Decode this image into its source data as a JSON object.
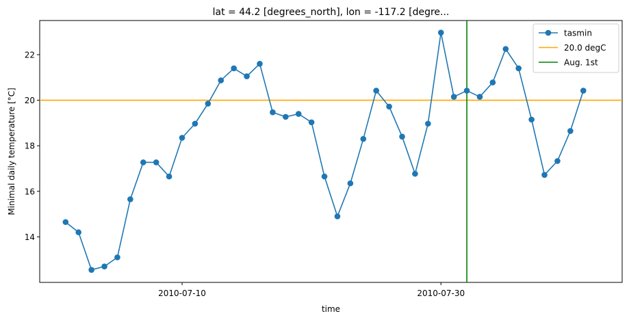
{
  "chart_data": {
    "type": "line",
    "title": "lat = 44.2 [degrees_north], lon = -117.2 [degre...",
    "xlabel": "time",
    "ylabel": "Minimal daily temperature [°C]",
    "x_start": "2010-07-01",
    "xticks": [
      {
        "day": 9,
        "label": "2010-07-10"
      },
      {
        "day": 29,
        "label": "2010-07-30"
      }
    ],
    "yticks": [
      14,
      16,
      18,
      20,
      22
    ],
    "xlim": [
      "2010-06-29",
      "2010-08-13"
    ],
    "ylim": [
      12.0,
      23.5
    ],
    "series": [
      {
        "name": "tasmin",
        "color": "#1f77b4",
        "values": [
          14.65,
          14.2,
          12.55,
          12.7,
          13.1,
          15.65,
          17.27,
          17.27,
          16.65,
          18.35,
          18.97,
          19.85,
          20.87,
          21.4,
          21.05,
          21.6,
          19.47,
          19.27,
          19.4,
          19.03,
          16.65,
          14.9,
          16.35,
          18.3,
          20.42,
          19.72,
          18.4,
          16.77,
          18.97,
          22.97,
          20.15,
          20.42,
          20.15,
          20.78,
          22.25,
          21.4,
          19.15,
          16.72,
          17.33,
          18.65,
          20.42
        ]
      }
    ],
    "hlines": [
      {
        "name": "20.0 degC",
        "y": 20.0,
        "color": "#ffa500"
      }
    ],
    "vlines": [
      {
        "name": "Aug. 1st",
        "x": "2010-08-01",
        "color": "#008000"
      }
    ],
    "legend": {
      "position": "top-right",
      "entries": [
        "tasmin",
        "20.0 degC",
        "Aug. 1st"
      ]
    }
  }
}
